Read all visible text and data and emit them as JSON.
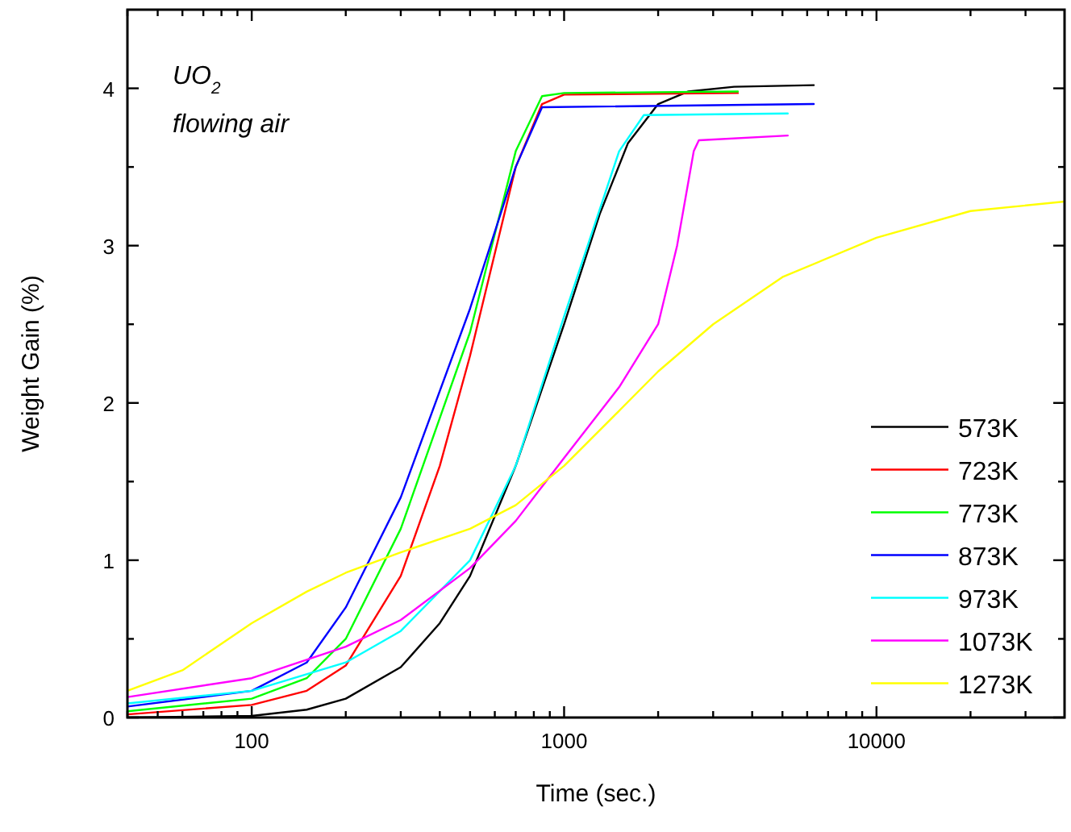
{
  "chart_data": {
    "type": "line",
    "xlabel": "Time (sec.)",
    "ylabel": "Weight Gain (%)",
    "log": "x",
    "xlim": [
      40,
      40000
    ],
    "ylim": [
      0,
      4.5
    ],
    "xticks": [
      {
        "value": 40,
        "label": null
      },
      {
        "value": 50,
        "label": null
      },
      {
        "value": 60,
        "label": null
      },
      {
        "value": 70,
        "label": null
      },
      {
        "value": 80,
        "label": null
      },
      {
        "value": 90,
        "label": null
      },
      100,
      {
        "value": 200,
        "label": null
      },
      {
        "value": 300,
        "label": null
      },
      {
        "value": 400,
        "label": null
      },
      {
        "value": 500,
        "label": null
      },
      {
        "value": 600,
        "label": null
      },
      {
        "value": 700,
        "label": null
      },
      {
        "value": 800,
        "label": null
      },
      {
        "value": 900,
        "label": null
      },
      1000,
      {
        "value": 2000,
        "label": null
      },
      {
        "value": 3000,
        "label": null
      },
      {
        "value": 4000,
        "label": null
      },
      {
        "value": 5000,
        "label": null
      },
      {
        "value": 6000,
        "label": null
      },
      {
        "value": 7000,
        "label": null
      },
      {
        "value": 8000,
        "label": null
      },
      {
        "value": 9000,
        "label": null
      },
      10000,
      {
        "value": 20000,
        "label": null
      },
      {
        "value": 30000,
        "label": null
      }
    ],
    "yticks": [
      0,
      {
        "value": 0.5,
        "label": null
      },
      1,
      {
        "value": 1.5,
        "label": null
      },
      2,
      {
        "value": 2.5,
        "label": null
      },
      3,
      {
        "value": 3.5,
        "label": null
      },
      4
    ],
    "grid": false,
    "legend": "bottom right",
    "marker": "none",
    "line_style": "solid",
    "annotations": [
      "UO$_{2}$",
      "flowing air"
    ],
    "series": [
      {
        "name": "573K",
        "color": "#000000",
        "x": [
          40,
          100,
          150,
          200,
          300,
          400,
          500,
          700,
          1000,
          1300,
          1600,
          2000,
          2500,
          3500,
          6300
        ],
        "values": [
          0,
          0.01,
          0.05,
          0.12,
          0.32,
          0.6,
          0.9,
          1.6,
          2.5,
          3.2,
          3.65,
          3.9,
          3.98,
          4.01,
          4.02
        ]
      },
      {
        "name": "723K",
        "color": "#ff0000",
        "x": [
          40,
          100,
          150,
          200,
          300,
          400,
          500,
          700,
          850,
          1000,
          3600
        ],
        "values": [
          0.02,
          0.08,
          0.17,
          0.33,
          0.9,
          1.6,
          2.3,
          3.5,
          3.9,
          3.96,
          3.97
        ]
      },
      {
        "name": "773K",
        "color": "#00ff00",
        "x": [
          40,
          100,
          150,
          200,
          300,
          500,
          700,
          850,
          1000,
          3600
        ],
        "values": [
          0.04,
          0.12,
          0.25,
          0.5,
          1.2,
          2.45,
          3.6,
          3.95,
          3.97,
          3.98
        ]
      },
      {
        "name": "873K",
        "color": "#0000ff",
        "x": [
          40,
          100,
          150,
          200,
          300,
          500,
          700,
          850,
          6300
        ],
        "values": [
          0.07,
          0.17,
          0.35,
          0.7,
          1.4,
          2.6,
          3.5,
          3.88,
          3.9
        ]
      },
      {
        "name": "973K",
        "color": "#00ffff",
        "x": [
          40,
          100,
          200,
          300,
          500,
          700,
          1000,
          1500,
          1800,
          5200
        ],
        "values": [
          0.09,
          0.17,
          0.35,
          0.55,
          1.0,
          1.6,
          2.55,
          3.6,
          3.83,
          3.84
        ]
      },
      {
        "name": "1073K",
        "color": "#ff00ff",
        "x": [
          40,
          100,
          200,
          300,
          500,
          700,
          1000,
          1500,
          2000,
          2300,
          2600,
          2700,
          5200
        ],
        "values": [
          0.13,
          0.25,
          0.45,
          0.62,
          0.95,
          1.25,
          1.65,
          2.1,
          2.5,
          3.0,
          3.6,
          3.67,
          3.7
        ]
      },
      {
        "name": "1273K",
        "color": "#ffff00",
        "x": [
          40,
          60,
          100,
          150,
          200,
          300,
          500,
          700,
          1000,
          1500,
          2000,
          3000,
          5000,
          10000,
          20000,
          40000
        ],
        "values": [
          0.17,
          0.3,
          0.6,
          0.8,
          0.92,
          1.05,
          1.2,
          1.35,
          1.6,
          1.95,
          2.2,
          2.5,
          2.8,
          3.05,
          3.22,
          3.28
        ]
      }
    ]
  }
}
